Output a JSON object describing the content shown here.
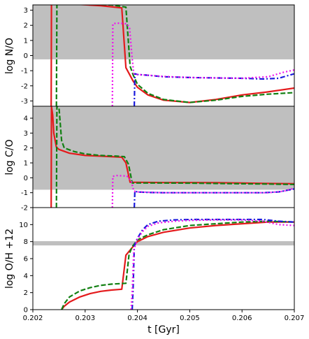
{
  "chart_data": {
    "type": "line",
    "xlabel": "t [Gyr]",
    "xlim": [
      0.202,
      0.207
    ],
    "xticks": [
      "0.202",
      "0.203",
      "0.204",
      "0.205",
      "0.206",
      "0.207"
    ],
    "series_styles": [
      {
        "color": "#e41a1c",
        "dash": "solid"
      },
      {
        "color": "#128012",
        "dash": "dashed"
      },
      {
        "color": "#1a1adc",
        "dash": "dashdot"
      },
      {
        "color": "#ee11ee",
        "dash": "dotted"
      }
    ],
    "panels": [
      {
        "id": "no",
        "ylabel": "log N/O",
        "ylim": [
          -3.35,
          3.35
        ],
        "yticks": [
          "-3",
          "-2",
          "-1",
          "0",
          "1",
          "2",
          "3"
        ],
        "shade": [
          -0.25,
          3.35
        ],
        "series": [
          {
            "x": [
              0.20235,
              0.202355,
              0.2024,
              0.2028,
              0.2033,
              0.2037,
              0.20378,
              0.20392,
              0.204,
              0.2042,
              0.2045,
              0.205,
              0.2055,
              0.206,
              0.2065,
              0.207
            ],
            "y": [
              -3.35,
              3.4,
              3.5,
              3.4,
              3.3,
              3.15,
              -0.8,
              -1.7,
              -2.1,
              -2.6,
              -2.95,
              -3.1,
              -2.9,
              -2.6,
              -2.4,
              -2.15
            ]
          },
          {
            "x": [
              0.20245,
              0.20246,
              0.2025,
              0.203,
              0.2035,
              0.20378,
              0.20386,
              0.20392,
              0.204,
              0.2042,
              0.2045,
              0.205,
              0.2055,
              0.206,
              0.2065,
              0.207
            ],
            "y": [
              -3.35,
              3.4,
              3.45,
              3.4,
              3.35,
              3.2,
              -0.7,
              -1.3,
              -1.9,
              -2.5,
              -2.9,
              -3.1,
              -2.95,
              -2.7,
              -2.55,
              -2.45
            ]
          },
          {
            "x": [
              0.20394,
              0.20395,
              0.204,
              0.2042,
              0.2045,
              0.205,
              0.2055,
              0.206,
              0.2064,
              0.2067,
              0.207
            ],
            "y": [
              -3.35,
              -1.2,
              -1.25,
              -1.3,
              -1.4,
              -1.45,
              -1.48,
              -1.5,
              -1.55,
              -1.5,
              -1.2
            ]
          },
          {
            "x": [
              0.20352,
              0.20353,
              0.2036,
              0.2038,
              0.20385,
              0.2039,
              0.20393,
              0.204,
              0.2042,
              0.2045,
              0.205,
              0.2055,
              0.206,
              0.2065,
              0.2068,
              0.207
            ],
            "y": [
              -3.35,
              2.1,
              2.15,
              2.1,
              1.8,
              -0.2,
              -1.2,
              -1.25,
              -1.3,
              -1.38,
              -1.45,
              -1.48,
              -1.5,
              -1.4,
              -1.1,
              -0.95
            ]
          }
        ]
      },
      {
        "id": "co",
        "ylabel": "log C/O",
        "ylim": [
          -2.0,
          4.8
        ],
        "yticks": [
          "-2",
          "-1",
          "0",
          "1",
          "2",
          "3",
          "4"
        ],
        "shade": [
          -0.8,
          4.8
        ],
        "series": [
          {
            "x": [
              0.20235,
              0.202355,
              0.20238,
              0.2024,
              0.20245,
              0.2025,
              0.2027,
              0.203,
              0.2033,
              0.2036,
              0.2037,
              0.20378,
              0.20386,
              0.204,
              0.2045,
              0.205,
              0.2055,
              0.206,
              0.2065,
              0.207
            ],
            "y": [
              -2.0,
              4.8,
              4.2,
              3.0,
              2.05,
              1.9,
              1.65,
              1.5,
              1.45,
              1.4,
              1.38,
              1.0,
              -0.3,
              -0.3,
              -0.32,
              -0.32,
              -0.33,
              -0.35,
              -0.38,
              -0.4
            ]
          },
          {
            "x": [
              0.20245,
              0.20246,
              0.2025,
              0.20255,
              0.2026,
              0.2028,
              0.203,
              0.2033,
              0.2036,
              0.20375,
              0.20383,
              0.2039,
              0.204,
              0.2045,
              0.205,
              0.2055,
              0.206,
              0.2065,
              0.207
            ],
            "y": [
              -2.0,
              4.8,
              4.7,
              2.5,
              2.0,
              1.75,
              1.6,
              1.5,
              1.45,
              1.42,
              0.9,
              -0.35,
              -0.35,
              -0.35,
              -0.36,
              -0.38,
              -0.4,
              -0.42,
              -0.45
            ]
          },
          {
            "x": [
              0.20394,
              0.20395,
              0.204,
              0.2042,
              0.2045,
              0.205,
              0.2055,
              0.206,
              0.2064,
              0.2067,
              0.207
            ],
            "y": [
              -2.0,
              -0.9,
              -0.95,
              -0.98,
              -1.0,
              -1.0,
              -1.0,
              -1.0,
              -1.0,
              -0.95,
              -0.75
            ]
          },
          {
            "x": [
              0.20352,
              0.20353,
              0.2036,
              0.2038,
              0.20388,
              0.20393,
              0.204,
              0.2045,
              0.205,
              0.2055,
              0.206,
              0.2065,
              0.2068,
              0.207
            ],
            "y": [
              -2.0,
              0.1,
              0.15,
              0.12,
              -0.2,
              -0.9,
              -0.95,
              -1.0,
              -1.0,
              -1.0,
              -1.0,
              -1.0,
              -0.9,
              -0.7
            ]
          }
        ]
      },
      {
        "id": "oh",
        "ylabel": "log O/H +12",
        "ylim": [
          0,
          12
        ],
        "yticks": [
          "0",
          "2",
          "4",
          "6",
          "8",
          "10"
        ],
        "shade": [
          7.55,
          8.05
        ],
        "series": [
          {
            "x": [
              0.20255,
              0.2026,
              0.2027,
              0.2029,
              0.2031,
              0.2033,
              0.2035,
              0.2037,
              0.20378,
              0.2039,
              0.204,
              0.2042,
              0.2045,
              0.205,
              0.2055,
              0.206,
              0.2065,
              0.207
            ],
            "y": [
              0.0,
              0.4,
              0.9,
              1.5,
              1.9,
              2.15,
              2.3,
              2.4,
              6.4,
              7.3,
              8.0,
              8.6,
              9.1,
              9.6,
              9.9,
              10.1,
              10.3,
              10.3
            ]
          },
          {
            "x": [
              0.20255,
              0.2026,
              0.2027,
              0.2029,
              0.2031,
              0.2033,
              0.2035,
              0.20378,
              0.20384,
              0.2039,
              0.204,
              0.2042,
              0.2045,
              0.205,
              0.2055,
              0.206,
              0.2065,
              0.207
            ],
            "y": [
              0.0,
              0.7,
              1.5,
              2.2,
              2.6,
              2.85,
              3.0,
              3.1,
              6.5,
              7.4,
              8.2,
              8.8,
              9.4,
              9.9,
              10.1,
              10.3,
              10.4,
              10.3
            ]
          },
          {
            "x": [
              0.2039,
              0.20392,
              0.20394,
              0.204,
              0.2041,
              0.2042,
              0.2044,
              0.2047,
              0.205,
              0.2055,
              0.206,
              0.2064,
              0.2067,
              0.207
            ],
            "y": [
              0.0,
              3.0,
              7.5,
              8.4,
              9.4,
              10.0,
              10.4,
              10.55,
              10.6,
              10.6,
              10.6,
              10.6,
              10.4,
              10.3
            ]
          },
          {
            "x": [
              0.20388,
              0.2039,
              0.20393,
              0.204,
              0.2041,
              0.2042,
              0.2044,
              0.2047,
              0.205,
              0.2055,
              0.206,
              0.2064,
              0.2067,
              0.207
            ],
            "y": [
              0.0,
              2.0,
              7.0,
              8.3,
              9.2,
              9.8,
              10.2,
              10.4,
              10.5,
              10.55,
              10.55,
              10.4,
              10.0,
              9.9
            ]
          }
        ]
      }
    ]
  }
}
